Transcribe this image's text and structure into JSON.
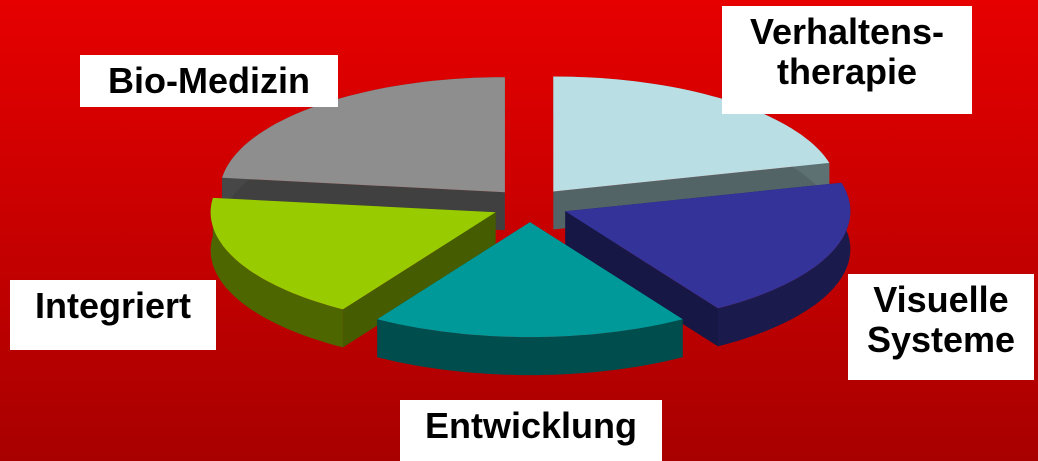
{
  "chart_data": {
    "type": "pie3d",
    "categories": [
      "Verhaltens-\ntherapie",
      "Visuelle\nSysteme",
      "Entwicklung",
      "Integriert",
      "Bio-Medizin"
    ],
    "values": [
      21,
      20,
      18,
      18,
      23
    ],
    "colors": [
      "#b9dfe4",
      "#333399",
      "#009999",
      "#99cc00",
      "#8e8e8e"
    ]
  }
}
